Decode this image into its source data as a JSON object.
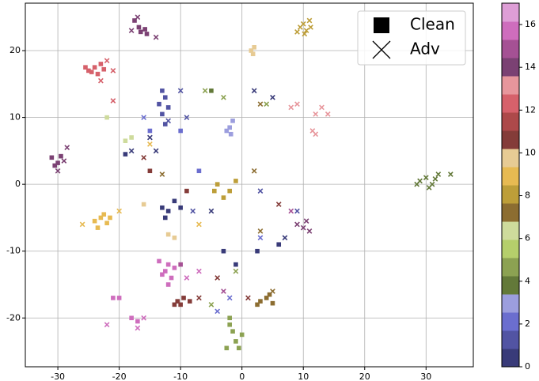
{
  "chart_data": {
    "type": "scatter",
    "xlim": [
      -35.3,
      37.7
    ],
    "ylim": [
      -27.3,
      27.1
    ],
    "xticks": [
      -30,
      -20,
      -10,
      0,
      10,
      20,
      30
    ],
    "yticks": [
      -20,
      -10,
      0,
      10,
      20
    ],
    "grid": true,
    "legend": "upper right",
    "colormap": [
      "#393b79",
      "#5254a3",
      "#6b6ecf",
      "#9c9ede",
      "#637939",
      "#8ca252",
      "#b5cf6b",
      "#cedb9c",
      "#8c6d31",
      "#bd9e39",
      "#e7ba52",
      "#e7cb94",
      "#843c39",
      "#ad494a",
      "#d6616b",
      "#e7969c",
      "#7b4173",
      "#a55194",
      "#ce6dbd",
      "#de9ed6"
    ],
    "clim": [
      0,
      17
    ],
    "colorbar_ticks": [
      0,
      2,
      4,
      6,
      8,
      10,
      12,
      14,
      16
    ],
    "series": [
      {
        "name": "Clean",
        "marker": "square",
        "x": [
          -17.5,
          -16.5,
          -15.8,
          -15.5,
          -16.8,
          -25,
          -24,
          -23.5,
          -24.5,
          -22.5,
          -25.5,
          -23,
          -31,
          -30,
          -29.5,
          -30.5,
          -24,
          -23,
          -22,
          -23.5,
          -22.5,
          -21.5,
          -12.5,
          -12,
          -11.5,
          -13,
          -11,
          -12,
          -13.5,
          -10.5,
          -9.5,
          -10,
          -8.5,
          -11,
          3,
          4,
          5,
          4.5,
          2.5,
          -2,
          -1.5,
          -1,
          0,
          -2.5,
          -0.5,
          -2,
          -13,
          -12.5,
          -13.5,
          -12,
          -13,
          -12.5,
          -2.5,
          -1.8,
          -2,
          -1.5,
          1.5,
          2,
          1.8,
          -4,
          -2,
          -1,
          -3,
          -4.5,
          -12,
          -13,
          -10,
          -12.5,
          -11,
          -19,
          -3,
          -1,
          6,
          2.5,
          -21,
          -20,
          -18,
          -17,
          -15,
          -10,
          -7,
          -18,
          -19,
          -22,
          -16,
          -12,
          -11,
          -5,
          -15,
          -9,
          -10
        ],
        "y": [
          24.5,
          22.8,
          23.2,
          22.5,
          23.5,
          17,
          17.5,
          16.5,
          16.8,
          17.2,
          17.5,
          18,
          4,
          3.2,
          4.2,
          2.8,
          -5.5,
          -5,
          -5.8,
          -6.5,
          -4.5,
          -5,
          -13,
          -12,
          -14,
          -13.5,
          -12.5,
          -15,
          -11.5,
          -17.5,
          -17,
          -18,
          -17.5,
          -18,
          -17.5,
          -17,
          -17.8,
          -16.5,
          -18,
          -20,
          -22,
          -23.5,
          -22.5,
          -24.5,
          -24.5,
          -21,
          14,
          13,
          12,
          11.5,
          10.5,
          9,
          8,
          7.5,
          8.5,
          9.5,
          20,
          20.5,
          19.5,
          0,
          -1,
          0.5,
          -2,
          -1,
          -4,
          -3.5,
          -3.5,
          -5,
          -2.5,
          4.5,
          -10,
          -12,
          -9,
          -10,
          -17,
          -17,
          -20,
          -20.5,
          8,
          8,
          2,
          7,
          6.5,
          10,
          -3,
          -7.5,
          -8,
          14,
          2,
          -1,
          -12
        ],
        "c": [
          14,
          14,
          14,
          14,
          14,
          12,
          12,
          12,
          12,
          12,
          12,
          12,
          14,
          14,
          14,
          14,
          9,
          9,
          9,
          9,
          9,
          9,
          16,
          16,
          16,
          16,
          16,
          16,
          16,
          11,
          11,
          11,
          11,
          11,
          7,
          7,
          7,
          7,
          7,
          5,
          5,
          5,
          5,
          5,
          5,
          5,
          1,
          1,
          1,
          1,
          1,
          1,
          3,
          3,
          3,
          3,
          10,
          10,
          10,
          8,
          8,
          8,
          8,
          8,
          0,
          0,
          0,
          0,
          0,
          0,
          0,
          0,
          0,
          0,
          16,
          16,
          16,
          16,
          2,
          2,
          2,
          6,
          6,
          6,
          10,
          10,
          10,
          4,
          11,
          11,
          15
        ]
      },
      {
        "name": "Adv",
        "marker": "x",
        "x": [
          9.5,
          10,
          10.5,
          11,
          9,
          10.2,
          11.2,
          -17,
          -18,
          -14,
          -30,
          -28.5,
          -29,
          10,
          11,
          9,
          10.5,
          -21,
          -22,
          -21,
          -23,
          29,
          30,
          31,
          32,
          30.5,
          34,
          31.5,
          28.5,
          12,
          14,
          13,
          11.5,
          9,
          8,
          12,
          -10,
          -9,
          -12,
          3,
          9,
          -8,
          -15,
          -14,
          -18,
          2,
          5,
          -5,
          7,
          -20,
          -26,
          -15,
          -7,
          -6,
          -3,
          4,
          -1,
          -5,
          -7,
          -4,
          6,
          1,
          -16,
          -16,
          -17,
          -22,
          -9,
          -7,
          3,
          5,
          2,
          3,
          -13,
          -4,
          -2,
          3,
          -16,
          -3,
          8
        ],
        "y": [
          23.5,
          24,
          23,
          24.5,
          22.8,
          22.5,
          23.5,
          25,
          23,
          22,
          2,
          5.5,
          3.5,
          -6.5,
          -7,
          -6,
          -5.5,
          17,
          18.5,
          12.5,
          15.5,
          0.5,
          1,
          0,
          1.5,
          -0.5,
          1.5,
          0.8,
          0,
          10.5,
          10.5,
          11.5,
          8,
          12,
          11.5,
          7.5,
          14,
          10,
          9.5,
          -1,
          -4,
          -4,
          7,
          5,
          5,
          14,
          13,
          -4,
          -8,
          -4,
          -6,
          6,
          -6,
          14,
          13,
          12,
          -13,
          -18,
          -17,
          -14,
          -3,
          -17,
          4,
          -20,
          -21.5,
          -21,
          -14,
          -13,
          12,
          -16,
          2,
          -7,
          1.5,
          -19,
          -17,
          -8,
          10,
          -16,
          -4
        ],
        "c": [
          8,
          8,
          8,
          8,
          8,
          8,
          8,
          14,
          14,
          14,
          14,
          14,
          14,
          14,
          14,
          14,
          14,
          12,
          12,
          12,
          12,
          4,
          4,
          4,
          4,
          4,
          4,
          4,
          4,
          13,
          13,
          13,
          13,
          13,
          13,
          13,
          1,
          1,
          1,
          1,
          1,
          1,
          0,
          0,
          0,
          0,
          0,
          0,
          0,
          9,
          9,
          9,
          9,
          5,
          5,
          5,
          5,
          5,
          11,
          11,
          11,
          11,
          11,
          16,
          16,
          16,
          16,
          16,
          7,
          7,
          7,
          7,
          7,
          2,
          2,
          2,
          2,
          15,
          15
        ]
      }
    ]
  }
}
